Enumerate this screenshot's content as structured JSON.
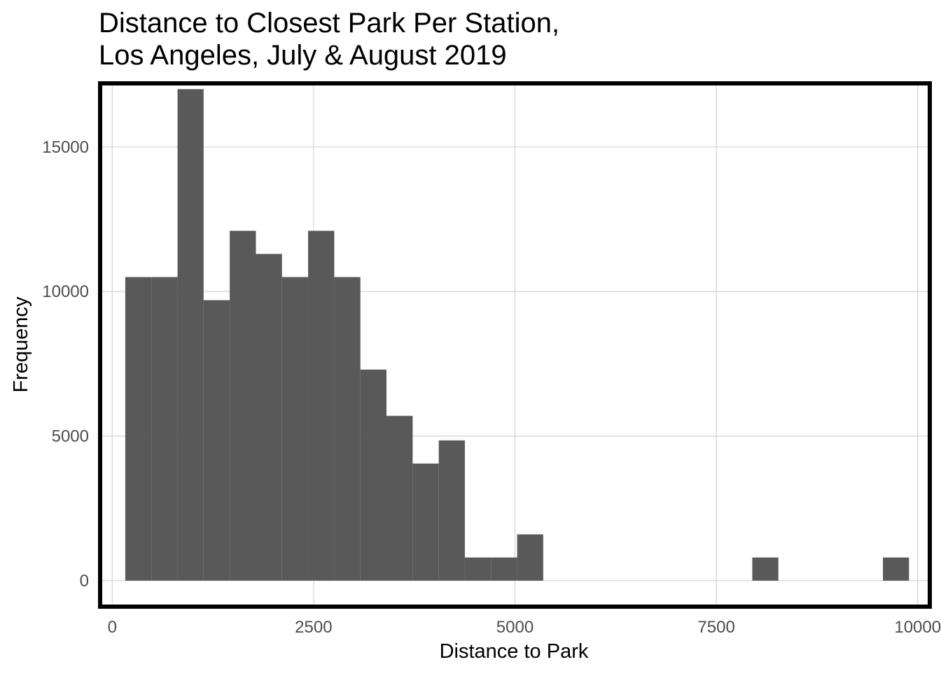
{
  "title_lines": [
    "Distance to Closest Park Per Station,",
    "Los Angeles, July & August 2019"
  ],
  "chart_data": {
    "type": "bar",
    "subtype": "histogram",
    "title": "Distance to Closest Park Per Station, Los Angeles, July & August 2019",
    "xlabel": "Distance to Park",
    "ylabel": "Frequency",
    "xlim": [
      -150,
      10150
    ],
    "ylim": [
      -900,
      17200
    ],
    "x_ticks": [
      0,
      2500,
      5000,
      7500,
      10000
    ],
    "y_ticks": [
      0,
      5000,
      10000,
      15000
    ],
    "grid": true,
    "bar_color": "#595959",
    "bins": [
      {
        "x0": 162,
        "x1": 486,
        "count": 10500
      },
      {
        "x0": 486,
        "x1": 811,
        "count": 10500
      },
      {
        "x0": 811,
        "x1": 1135,
        "count": 17000
      },
      {
        "x0": 1135,
        "x1": 1459,
        "count": 9700
      },
      {
        "x0": 1459,
        "x1": 1784,
        "count": 12100
      },
      {
        "x0": 1784,
        "x1": 2108,
        "count": 11300
      },
      {
        "x0": 2108,
        "x1": 2432,
        "count": 10500
      },
      {
        "x0": 2432,
        "x1": 2757,
        "count": 12100
      },
      {
        "x0": 2757,
        "x1": 3081,
        "count": 10500
      },
      {
        "x0": 3081,
        "x1": 3405,
        "count": 7300
      },
      {
        "x0": 3405,
        "x1": 3730,
        "count": 5700
      },
      {
        "x0": 3730,
        "x1": 4054,
        "count": 4050
      },
      {
        "x0": 4054,
        "x1": 4378,
        "count": 4850
      },
      {
        "x0": 4378,
        "x1": 4703,
        "count": 800
      },
      {
        "x0": 4703,
        "x1": 5027,
        "count": 800
      },
      {
        "x0": 5027,
        "x1": 5351,
        "count": 1600
      },
      {
        "x0": 7946,
        "x1": 8270,
        "count": 800
      },
      {
        "x0": 9568,
        "x1": 9892,
        "count": 800
      }
    ]
  }
}
